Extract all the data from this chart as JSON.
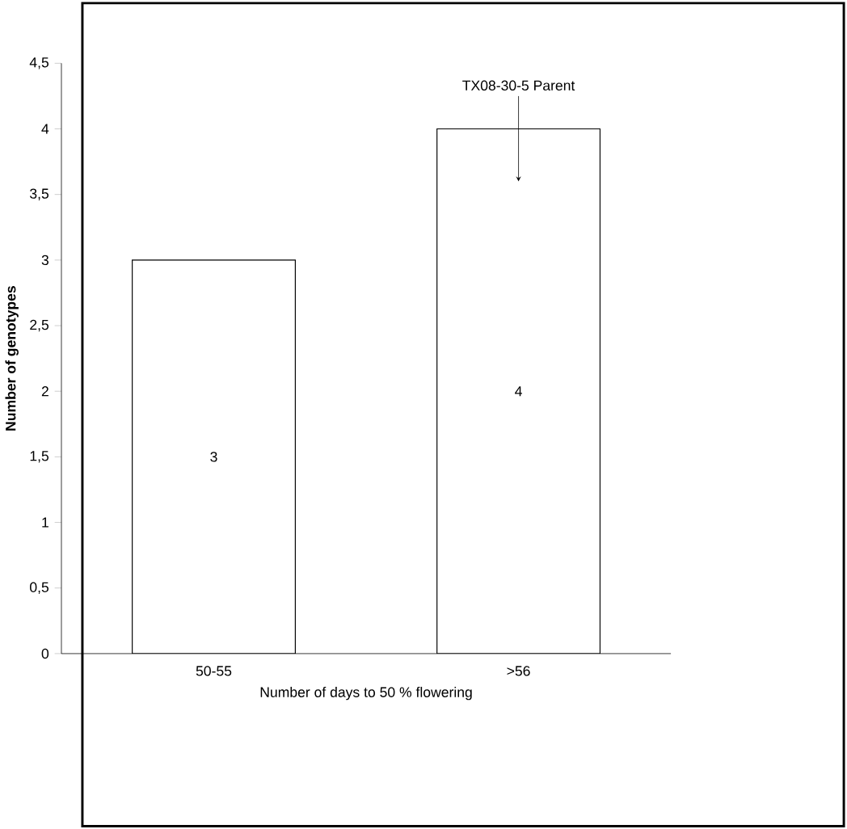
{
  "chart_data": {
    "type": "bar",
    "categories": [
      "50-55",
      ">56"
    ],
    "values": [
      3,
      4
    ],
    "color": "#ffffff",
    "data_labels": true,
    "xlabel": "Number of days to 50 % flowering",
    "ylabel": "**Number of genotypes**",
    "ylim": [
      0,
      4.5
    ],
    "yticks": [
      0,
      {
        "value": 0.5,
        "label": "0,5"
      },
      1,
      {
        "value": 1.5,
        "label": "1,5"
      },
      2,
      {
        "value": 2.5,
        "label": "2,5"
      },
      3,
      {
        "value": 3.5,
        "label": "3,5"
      },
      4,
      {
        "value": 4.5,
        "label": "4,5"
      }
    ],
    "annotations": [
      {
        "text": "TX08-30-5 Parent",
        "x": ">56",
        "y": 4
      }
    ]
  }
}
